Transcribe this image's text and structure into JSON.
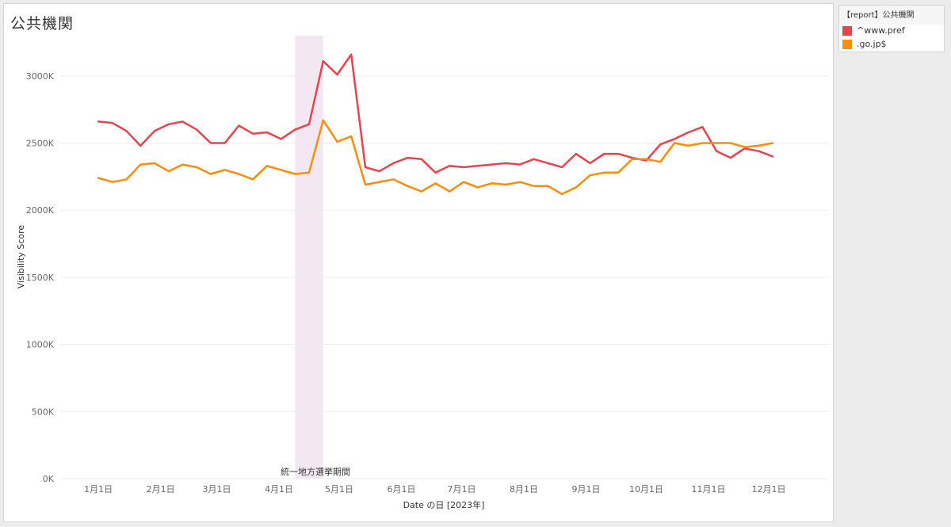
{
  "header": {
    "title": "公共機関"
  },
  "legend": {
    "title": "【report】公共機関",
    "items": [
      {
        "label": "^www.pref",
        "color": "#e8434f"
      },
      {
        "label": ".go.jp$",
        "color": "#ff8c0b"
      }
    ]
  },
  "chart_data": {
    "type": "line",
    "xlabel": "Date の日 [2023年]",
    "ylabel": "Visibility Score",
    "ylim": [
      0,
      3300000
    ],
    "y_ticks": [
      {
        "value": 0,
        "label": "0K"
      },
      {
        "value": 500000,
        "label": "500K"
      },
      {
        "value": 1000000,
        "label": "1000K"
      },
      {
        "value": 1500000,
        "label": "1500K"
      },
      {
        "value": 2000000,
        "label": "2000K"
      },
      {
        "value": 2500000,
        "label": "2500K"
      },
      {
        "value": 3000000,
        "label": "3000K"
      }
    ],
    "x_ticks": [
      {
        "date": "2023-01-01",
        "label": "1月1日"
      },
      {
        "date": "2023-02-01",
        "label": "2月1日"
      },
      {
        "date": "2023-03-01",
        "label": "3月1日"
      },
      {
        "date": "2023-04-01",
        "label": "4月1日"
      },
      {
        "date": "2023-05-01",
        "label": "5月1日"
      },
      {
        "date": "2023-06-01",
        "label": "6月1日"
      },
      {
        "date": "2023-07-01",
        "label": "7月1日"
      },
      {
        "date": "2023-08-01",
        "label": "8月1日"
      },
      {
        "date": "2023-09-01",
        "label": "9月1日"
      },
      {
        "date": "2023-10-01",
        "label": "10月1日"
      },
      {
        "date": "2023-11-01",
        "label": "11月1日"
      },
      {
        "date": "2023-12-01",
        "label": "12月1日"
      }
    ],
    "x_domain": [
      "2022-12-13",
      "2023-12-31"
    ],
    "grid": true,
    "band": {
      "label": "統一地方選挙期間",
      "start": "2023-04-09",
      "end": "2023-04-23",
      "color": "#f3e7f1"
    },
    "x": [
      "2023-01-01",
      "2023-01-08",
      "2023-01-15",
      "2023-01-22",
      "2023-01-29",
      "2023-02-05",
      "2023-02-12",
      "2023-02-19",
      "2023-02-26",
      "2023-03-05",
      "2023-03-12",
      "2023-03-19",
      "2023-03-26",
      "2023-04-02",
      "2023-04-09",
      "2023-04-16",
      "2023-04-23",
      "2023-04-30",
      "2023-05-07",
      "2023-05-14",
      "2023-05-21",
      "2023-05-28",
      "2023-06-04",
      "2023-06-11",
      "2023-06-18",
      "2023-06-25",
      "2023-07-02",
      "2023-07-09",
      "2023-07-16",
      "2023-07-23",
      "2023-07-30",
      "2023-08-06",
      "2023-08-13",
      "2023-08-20",
      "2023-08-27",
      "2023-09-03",
      "2023-09-10",
      "2023-09-17",
      "2023-09-24",
      "2023-10-01",
      "2023-10-08",
      "2023-10-15",
      "2023-10-22",
      "2023-10-29",
      "2023-11-05",
      "2023-11-12",
      "2023-11-19",
      "2023-11-26",
      "2023-12-03"
    ],
    "series": [
      {
        "name": "^www.pref",
        "color": "#e8434f",
        "values": [
          2660000,
          2650000,
          2590000,
          2480000,
          2590000,
          2640000,
          2660000,
          2600000,
          2500000,
          2500000,
          2630000,
          2570000,
          2580000,
          2530000,
          2600000,
          2640000,
          3110000,
          3010000,
          3160000,
          2320000,
          2290000,
          2350000,
          2390000,
          2380000,
          2280000,
          2330000,
          2320000,
          2330000,
          2340000,
          2350000,
          2340000,
          2380000,
          2350000,
          2320000,
          2420000,
          2350000,
          2420000,
          2420000,
          2390000,
          2370000,
          2490000,
          2530000,
          2580000,
          2620000,
          2440000,
          2390000,
          2460000,
          2440000,
          2400000
        ]
      },
      {
        "name": ".go.jp$",
        "color": "#ff8c0b",
        "values": [
          2240000,
          2210000,
          2230000,
          2340000,
          2350000,
          2290000,
          2340000,
          2320000,
          2270000,
          2300000,
          2270000,
          2230000,
          2330000,
          2300000,
          2270000,
          2280000,
          2670000,
          2510000,
          2550000,
          2190000,
          2210000,
          2230000,
          2180000,
          2140000,
          2200000,
          2140000,
          2210000,
          2170000,
          2200000,
          2190000,
          2210000,
          2180000,
          2180000,
          2120000,
          2170000,
          2260000,
          2280000,
          2280000,
          2380000,
          2380000,
          2360000,
          2500000,
          2480000,
          2500000,
          2500000,
          2500000,
          2470000,
          2480000,
          2500000
        ]
      }
    ]
  }
}
